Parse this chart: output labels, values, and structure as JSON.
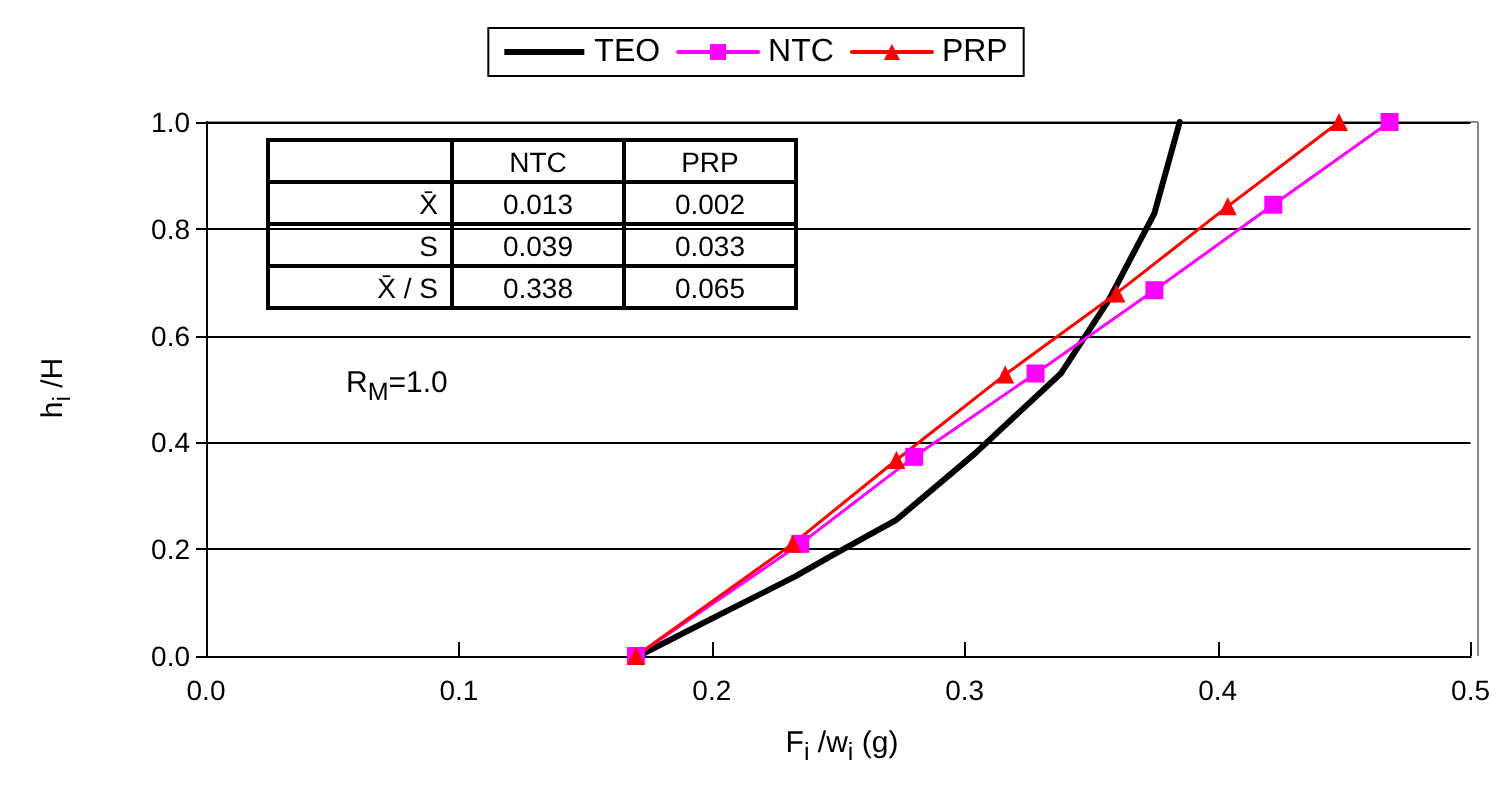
{
  "chart_data": {
    "type": "line",
    "xlabel": "F$_{i}$ /w$_{i}$ (g)",
    "ylabel": "h$_{i}$ /H",
    "xlim": [
      0,
      0.5
    ],
    "xticks": [
      {
        "value": 0,
        "label": "0.0"
      },
      0.1,
      0.2,
      0.3,
      0.4,
      0.5
    ],
    "ylim": [
      0,
      1
    ],
    "yticks": [
      {
        "value": 0,
        "label": "0.0"
      },
      0.2,
      0.4,
      0.6,
      0.8,
      {
        "value": 1,
        "label": "1.0"
      }
    ],
    "grid": "y",
    "legend": "top",
    "line_style": "solid",
    "series": [
      {
        "name": "TEO",
        "color": "#000000",
        "marker": "none",
        "x": [
          0.171,
          0.2,
          0.233,
          0.249,
          0.273,
          0.304,
          0.338,
          0.357,
          0.375,
          0.385
        ],
        "values": [
          0,
          0.07,
          0.149,
          0.192,
          0.255,
          0.379,
          0.529,
          0.667,
          0.829,
          1.0
        ]
      },
      {
        "name": "NTC",
        "color": "#ff00ff",
        "marker": "square",
        "x": [
          0.17,
          0.235,
          0.28,
          0.328,
          0.375,
          0.422,
          0.468
        ],
        "values": [
          0,
          0.21,
          0.373,
          0.529,
          0.685,
          0.845,
          1.0
        ]
      },
      {
        "name": "PRP",
        "color": "#ff0000",
        "marker": "triangle",
        "x": [
          0.17,
          0.232,
          0.273,
          0.316,
          0.36,
          0.404,
          0.448
        ],
        "values": [
          0,
          0.21,
          0.367,
          0.527,
          0.679,
          0.842,
          1.0
        ]
      }
    ],
    "annotations": [
      "NTC",
      "PRP",
      "X̄",
      "0.013",
      "0.002",
      "S",
      "0.039",
      "0.033",
      "X̄ / S",
      "0.338",
      "0.065",
      "R$_{M}$=1.0"
    ]
  }
}
